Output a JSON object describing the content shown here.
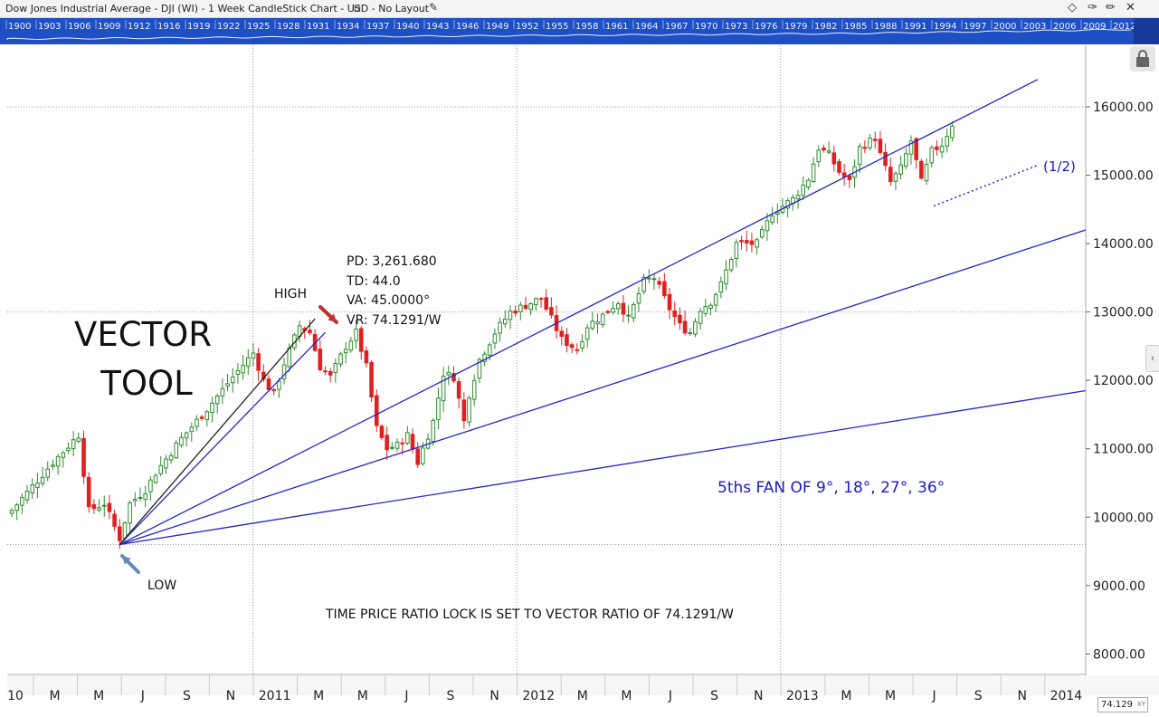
{
  "window": {
    "title": "Dow Jones Industrial Average - DJI (WI) - 1 Week CandleStick Chart - USD",
    "layout": "No Layout",
    "icons": [
      "layout-icon",
      "edit-icon",
      "diamond-icon",
      "pin-icon",
      "pencil-icon",
      "close-icon",
      "lock-icon",
      "collapse-arrow-icon"
    ]
  },
  "overview": {
    "years": [
      "1900",
      "1903",
      "1906",
      "1909",
      "1912",
      "1916",
      "1919",
      "1922",
      "1925",
      "1928",
      "1931",
      "1934",
      "1937",
      "1940",
      "1943",
      "1946",
      "1949",
      "1952",
      "1955",
      "1958",
      "1961",
      "1964",
      "1967",
      "1970",
      "1973",
      "1976",
      "1979",
      "1982",
      "1985",
      "1988",
      "1991",
      "1994",
      "1997",
      "2000",
      "2003",
      "2006",
      "2009",
      "2012"
    ]
  },
  "colors": {
    "up_candle": "#2e8b2e",
    "down_candle": "#e02020",
    "fan_line": "#2424cc",
    "vector_line": "#222222",
    "overview_bg": "#1f4fc4",
    "annotation_blue": "#1a1ac8"
  },
  "chart_data": {
    "type": "candlestick",
    "timeframe": "1 Week",
    "x_ticks": [
      "10",
      "M",
      "M",
      "J",
      "S",
      "N",
      "2011",
      "M",
      "M",
      "J",
      "S",
      "N",
      "2012",
      "M",
      "M",
      "J",
      "S",
      "N",
      "2013",
      "M",
      "M",
      "J",
      "S",
      "N",
      "2014"
    ],
    "y_ticks": [
      "8000.00",
      "9000.00",
      "10000.00",
      "11000.00",
      "12000.00",
      "13000.00",
      "14000.00",
      "15000.00",
      "16000.00"
    ],
    "ylim": [
      7700,
      16900
    ],
    "close_path": [
      [
        0,
        10100
      ],
      [
        4,
        10450
      ],
      [
        8,
        10800
      ],
      [
        13,
        11200
      ],
      [
        15,
        10100
      ],
      [
        18,
        10200
      ],
      [
        21,
        9690
      ],
      [
        23,
        10200
      ],
      [
        26,
        10400
      ],
      [
        28,
        10650
      ],
      [
        33,
        11150
      ],
      [
        38,
        11580
      ],
      [
        43,
        12050
      ],
      [
        47,
        12400
      ],
      [
        49,
        12000
      ],
      [
        51,
        11800
      ],
      [
        53,
        12250
      ],
      [
        56,
        12800
      ],
      [
        58,
        12700
      ],
      [
        60,
        12200
      ],
      [
        62,
        12050
      ],
      [
        65,
        12500
      ],
      [
        67,
        12700
      ],
      [
        69,
        12200
      ],
      [
        71,
        11300
      ],
      [
        73,
        11000
      ],
      [
        75,
        11050
      ],
      [
        77,
        11200
      ],
      [
        79,
        10800
      ],
      [
        82,
        11400
      ],
      [
        84,
        12100
      ],
      [
        86,
        12050
      ],
      [
        88,
        11400
      ],
      [
        89,
        11800
      ],
      [
        91,
        12300
      ],
      [
        94,
        12700
      ],
      [
        97,
        13000
      ],
      [
        100,
        13100
      ],
      [
        103,
        13200
      ],
      [
        105,
        12900
      ],
      [
        107,
        12600
      ],
      [
        110,
        12450
      ],
      [
        112,
        12800
      ],
      [
        115,
        12950
      ],
      [
        118,
        13150
      ],
      [
        120,
        12900
      ],
      [
        123,
        13450
      ],
      [
        125,
        13500
      ],
      [
        128,
        13050
      ],
      [
        130,
        12800
      ],
      [
        132,
        12700
      ],
      [
        134,
        13050
      ],
      [
        136,
        13150
      ],
      [
        138,
        13400
      ],
      [
        141,
        14000
      ],
      [
        145,
        14000
      ],
      [
        148,
        14450
      ],
      [
        152,
        14650
      ],
      [
        155,
        14950
      ],
      [
        157,
        15400
      ],
      [
        159,
        15300
      ],
      [
        161,
        15050
      ],
      [
        163,
        14900
      ],
      [
        165,
        15400
      ],
      [
        168,
        15550
      ],
      [
        169,
        15300
      ],
      [
        171,
        14900
      ],
      [
        173,
        15100
      ],
      [
        175,
        15500
      ],
      [
        177,
        14900
      ],
      [
        179,
        15350
      ],
      [
        181,
        15450
      ],
      [
        183,
        15750
      ]
    ],
    "low_point": {
      "week": 21,
      "price": 9600
    },
    "high_point": {
      "week": 59,
      "price": 12900
    },
    "vector": {
      "PD": "3,261.680",
      "TD": "44.0",
      "VA": "45.0000°",
      "VR": "74.1291/W"
    },
    "fan_angles": [
      "9°",
      "18°",
      "27°",
      "36°"
    ],
    "annotations": {
      "vector_tool_line1": "VECTOR",
      "vector_tool_line2": "TOOL",
      "high_label": "HIGH",
      "low_label": "LOW",
      "pd": "PD: 3,261.680",
      "td": "TD: 44.0",
      "va": "VA: 45.0000°",
      "vr": "VR: 74.1291/W",
      "fan_label": "5ths FAN OF 9°, 18°, 27°, 36°",
      "ratio_note": "TIME PRICE RATIO LOCK IS SET TO VECTOR RATIO OF 74.1291/W",
      "half_label": "(1/2)"
    },
    "xy_readout": "74.129"
  }
}
